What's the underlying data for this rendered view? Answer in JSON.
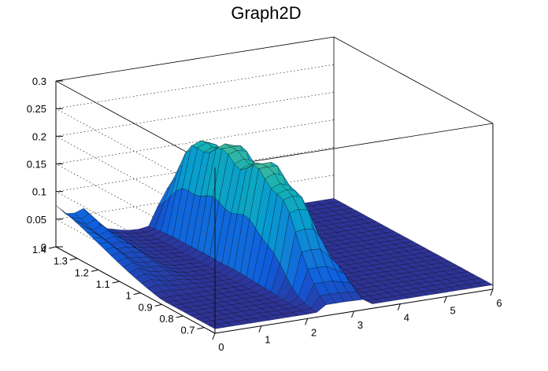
{
  "chart_data": {
    "type": "surface",
    "title": "Graph2D",
    "xlabel": "",
    "ylabel": "",
    "zlabel": "",
    "xlim": [
      0,
      6
    ],
    "ylim": [
      0.65,
      1.4
    ],
    "zlim": [
      0,
      0.3
    ],
    "grid": true,
    "colormap": "parula",
    "x_ticks": [
      "0",
      "1",
      "2",
      "3",
      "4",
      "5",
      "6"
    ],
    "y_ticks": [
      "0.7",
      "0.8",
      "0.9",
      "1",
      "1.1",
      "1.2",
      "1.3",
      "1.4"
    ],
    "z_ticks": [
      "0",
      "0.05",
      "0.1",
      "0.15",
      "0.2",
      "0.25",
      "0.3"
    ],
    "peak": {
      "x": 2.6,
      "y": 1.3,
      "z": 0.2
    }
  }
}
